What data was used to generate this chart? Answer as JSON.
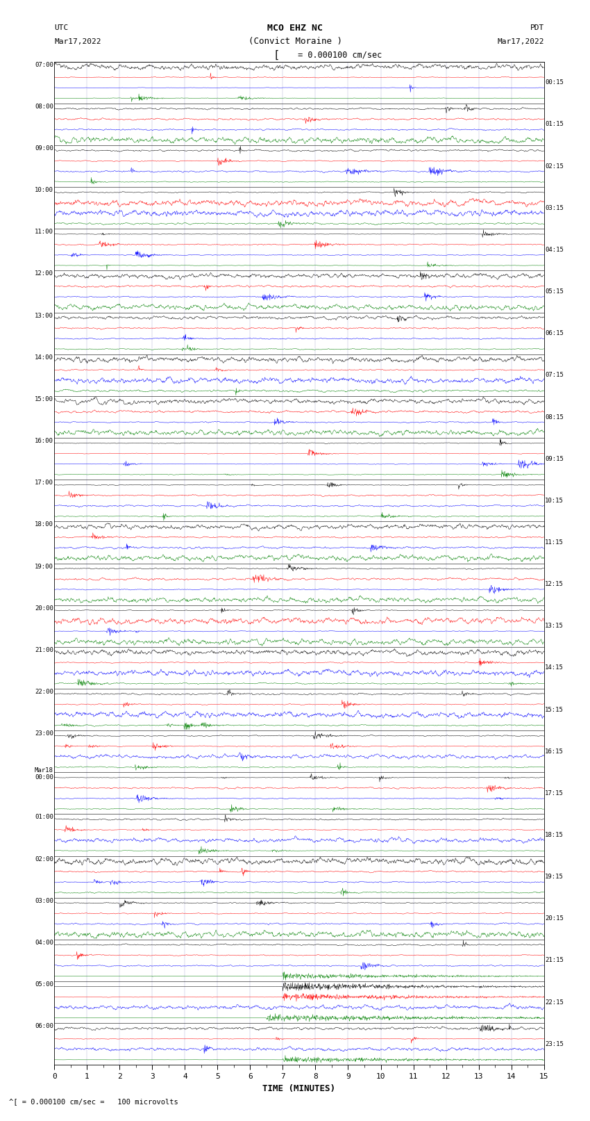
{
  "title_line1": "MCO EHZ NC",
  "title_line2": "(Convict Moraine )",
  "scale_text": "= 0.000100 cm/sec",
  "bottom_scale_text": "^[ = 0.000100 cm/sec =   100 microvolts",
  "utc_label": "UTC",
  "utc_date": "Mar17,2022",
  "pdt_label": "PDT",
  "pdt_date": "Mar17,2022",
  "xlabel": "TIME (MINUTES)",
  "left_times": [
    "07:00",
    "08:00",
    "09:00",
    "10:00",
    "11:00",
    "12:00",
    "13:00",
    "14:00",
    "15:00",
    "16:00",
    "17:00",
    "18:00",
    "19:00",
    "20:00",
    "21:00",
    "22:00",
    "23:00",
    "Mar18\n00:00",
    "01:00",
    "02:00",
    "03:00",
    "04:00",
    "05:00",
    "06:00"
  ],
  "right_times": [
    "00:15",
    "01:15",
    "02:15",
    "03:15",
    "04:15",
    "05:15",
    "06:15",
    "07:15",
    "08:15",
    "09:15",
    "10:15",
    "11:15",
    "12:15",
    "13:15",
    "14:15",
    "15:15",
    "16:15",
    "17:15",
    "18:15",
    "19:15",
    "20:15",
    "21:15",
    "22:15",
    "23:15"
  ],
  "trace_color_cycle": [
    "black",
    "red",
    "blue",
    "green"
  ],
  "n_hours": 24,
  "traces_per_hour": 4,
  "bg_color": "white",
  "x_ticks": [
    0,
    1,
    2,
    3,
    4,
    5,
    6,
    7,
    8,
    9,
    10,
    11,
    12,
    13,
    14,
    15
  ],
  "seed": 12345,
  "sample_rate": 100,
  "duration_minutes": 15
}
